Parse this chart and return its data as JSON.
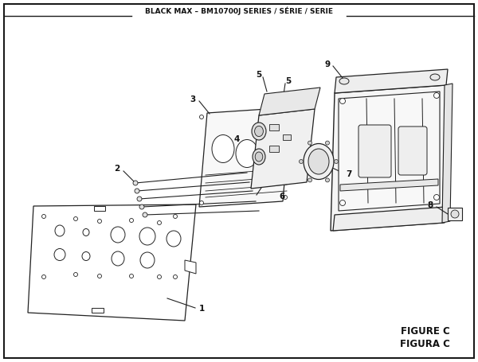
{
  "title": "BLACK MAX – BM10700J SERIES / SÉRIE / SERIE",
  "figure_label": "FIGURE C",
  "figura_label": "FIGURA C",
  "bg_color": "#ffffff",
  "border_color": "#1a1a1a",
  "line_color": "#222222",
  "text_color": "#111111"
}
